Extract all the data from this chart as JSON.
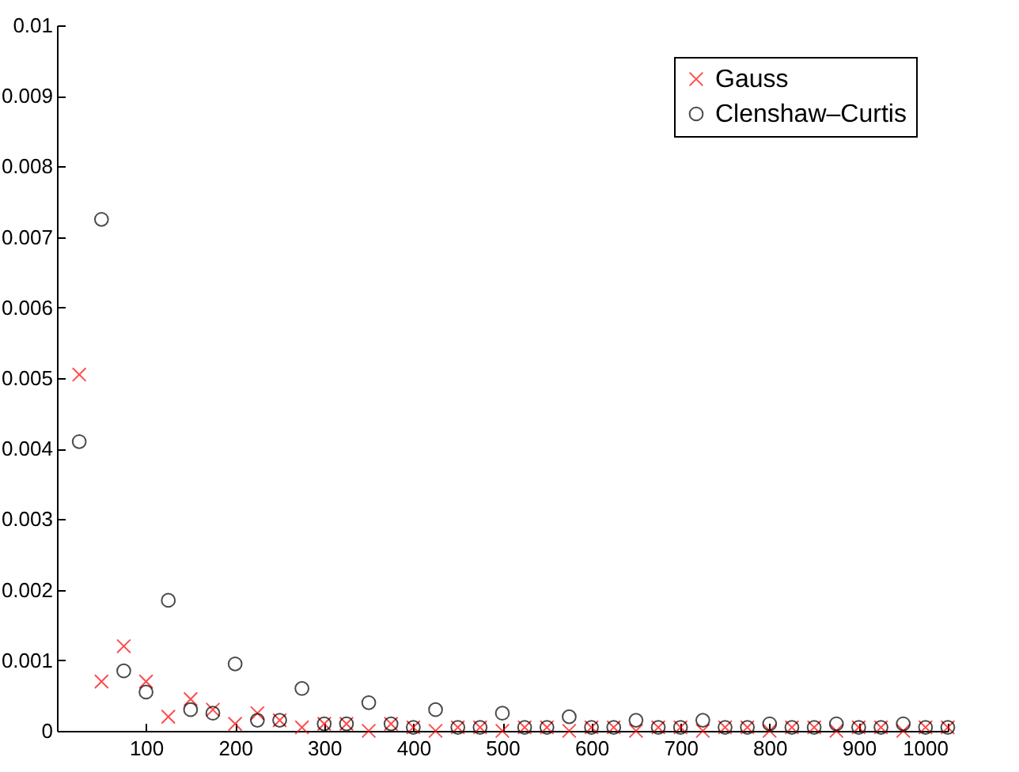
{
  "chart_data": {
    "type": "scatter",
    "x": [
      25,
      50,
      75,
      100,
      125,
      150,
      175,
      200,
      225,
      250,
      275,
      300,
      325,
      350,
      375,
      400,
      425,
      450,
      475,
      500,
      525,
      550,
      575,
      600,
      625,
      650,
      675,
      700,
      725,
      750,
      775,
      800,
      825,
      850,
      875,
      900,
      925,
      950,
      975,
      1000
    ],
    "series": [
      {
        "name": "Gauss",
        "color": "#ff0000",
        "marker": "cross",
        "values": [
          0.00505,
          0.0007,
          0.0012,
          0.0007,
          0.0002,
          0.00045,
          0.0003,
          0.0001,
          0.00025,
          0.00015,
          5e-05,
          0.0001,
          0.0001,
          0,
          0.0001,
          5e-05,
          0,
          5e-05,
          5e-05,
          0,
          5e-05,
          5e-05,
          0,
          5e-05,
          5e-05,
          0,
          5e-05,
          5e-05,
          0,
          5e-05,
          5e-05,
          0,
          5e-05,
          5e-05,
          0,
          5e-05,
          5e-05,
          0,
          5e-05,
          5e-05
        ]
      },
      {
        "name": "Clenshaw–Curtis",
        "color": "#000000",
        "marker": "circle",
        "values": [
          0.0041,
          0.00725,
          0.00085,
          0.00055,
          0.00185,
          0.0003,
          0.00025,
          0.00095,
          0.00015,
          0.00015,
          0.0006,
          0.0001,
          0.0001,
          0.0004,
          0.0001,
          5e-05,
          0.0003,
          5e-05,
          5e-05,
          0.00025,
          5e-05,
          5e-05,
          0.0002,
          5e-05,
          5e-05,
          0.00015,
          5e-05,
          5e-05,
          0.00015,
          5e-05,
          5e-05,
          0.0001,
          5e-05,
          5e-05,
          0.0001,
          5e-05,
          5e-05,
          0.0001,
          5e-05,
          5e-05
        ]
      }
    ],
    "xlim": [
      0,
      1000
    ],
    "xticks": [
      100,
      200,
      300,
      400,
      500,
      600,
      700,
      800,
      900,
      1000
    ],
    "ylim": [
      0,
      0.01
    ],
    "yticks": [
      0,
      0.001,
      0.002,
      0.003,
      0.004,
      0.005,
      0.006,
      0.007,
      0.008,
      0.009,
      0.01
    ],
    "legend": "top right"
  }
}
